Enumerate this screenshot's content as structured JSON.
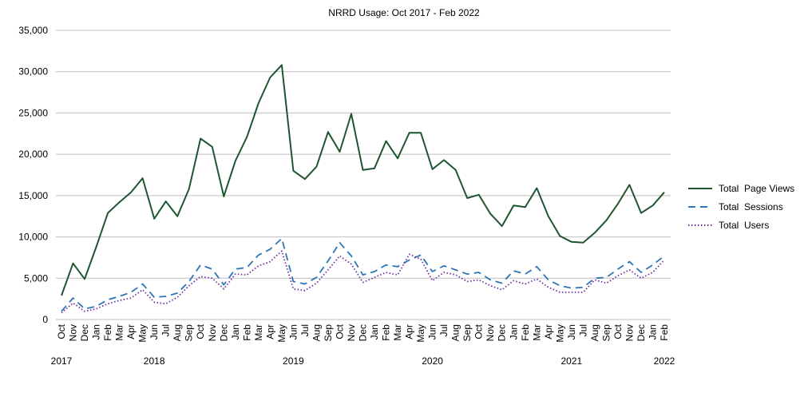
{
  "chart_data": {
    "type": "line",
    "title": "NRRD Usage: Oct 2017 - Feb 2022",
    "xlabel": "",
    "ylabel": "",
    "ylim": [
      0,
      35000
    ],
    "yticks": [
      "0",
      "5,000",
      "10,000",
      "15,000",
      "20,000",
      "25,000",
      "30,000",
      "35,000"
    ],
    "ytick_values": [
      0,
      5000,
      10000,
      15000,
      20000,
      25000,
      30000,
      35000
    ],
    "grid": true,
    "legend_position": "right",
    "categories": [
      "Oct",
      "Nov",
      "Dec",
      "Jan",
      "Feb",
      "Mar",
      "Apr",
      "May",
      "Jun",
      "Jul",
      "Aug",
      "Sep",
      "Oct",
      "Nov",
      "Dec",
      "Jan",
      "Feb",
      "Mar",
      "Apr",
      "May",
      "Jun",
      "Jul",
      "Aug",
      "Sep",
      "Oct",
      "Nov",
      "Dec",
      "Jan",
      "Feb",
      "Mar",
      "Apr",
      "May",
      "Jun",
      "Jul",
      "Aug",
      "Sep",
      "Oct",
      "Nov",
      "Dec",
      "Jan",
      "Feb",
      "Mar",
      "Apr",
      "May",
      "Jun",
      "Jul",
      "Aug",
      "Sep",
      "Oct",
      "Nov",
      "Dec",
      "Jan",
      "Feb"
    ],
    "year_labels": [
      {
        "label": "2017",
        "index": 0
      },
      {
        "label": "2018",
        "index": 8
      },
      {
        "label": "2019",
        "index": 20
      },
      {
        "label": "2020",
        "index": 32
      },
      {
        "label": "2021",
        "index": 44
      },
      {
        "label": "2022",
        "index": 52
      }
    ],
    "series": [
      {
        "name": "Total  Page Views",
        "color": "#1e5631",
        "dash": "solid",
        "values": [
          2900,
          6800,
          4900,
          8800,
          12900,
          14200,
          15400,
          17100,
          12200,
          14300,
          12500,
          15800,
          21900,
          20900,
          14900,
          19200,
          22100,
          26200,
          29300,
          30800,
          18000,
          17000,
          18500,
          22700,
          20300,
          24900,
          18100,
          18300,
          21600,
          19500,
          22600,
          22600,
          18200,
          19300,
          18100,
          14700,
          15100,
          12800,
          11300,
          13800,
          13600,
          15900,
          12500,
          10100,
          9400,
          9300,
          10500,
          12000,
          14000,
          16300,
          12900,
          13800,
          15400
        ]
      },
      {
        "name": "Total  Sessions",
        "color": "#2e75b6",
        "dash": "dashed",
        "values": [
          1000,
          2600,
          1300,
          1600,
          2400,
          2800,
          3300,
          4300,
          2700,
          2800,
          3200,
          4600,
          6600,
          6100,
          4200,
          6100,
          6300,
          7800,
          8500,
          9800,
          4600,
          4300,
          5100,
          7100,
          9300,
          7700,
          5400,
          5800,
          6600,
          6400,
          7200,
          7800,
          5800,
          6500,
          6000,
          5500,
          5700,
          4800,
          4400,
          5900,
          5500,
          6400,
          4800,
          4100,
          3800,
          3900,
          5000,
          5100,
          6100,
          7000,
          5700,
          6600,
          7700
        ]
      },
      {
        "name": "Total  Users",
        "color": "#7030a0",
        "dash": "dotted",
        "values": [
          800,
          2000,
          1000,
          1300,
          1900,
          2300,
          2600,
          3600,
          2100,
          1900,
          2700,
          4100,
          5200,
          5000,
          3700,
          5500,
          5400,
          6500,
          7000,
          8300,
          3700,
          3500,
          4400,
          6000,
          7700,
          6700,
          4500,
          5100,
          5700,
          5400,
          7900,
          7300,
          4700,
          5700,
          5400,
          4600,
          4800,
          4100,
          3600,
          4700,
          4300,
          4900,
          3900,
          3300,
          3300,
          3300,
          4800,
          4400,
          5300,
          6000,
          5000,
          5700,
          7200
        ]
      }
    ]
  }
}
